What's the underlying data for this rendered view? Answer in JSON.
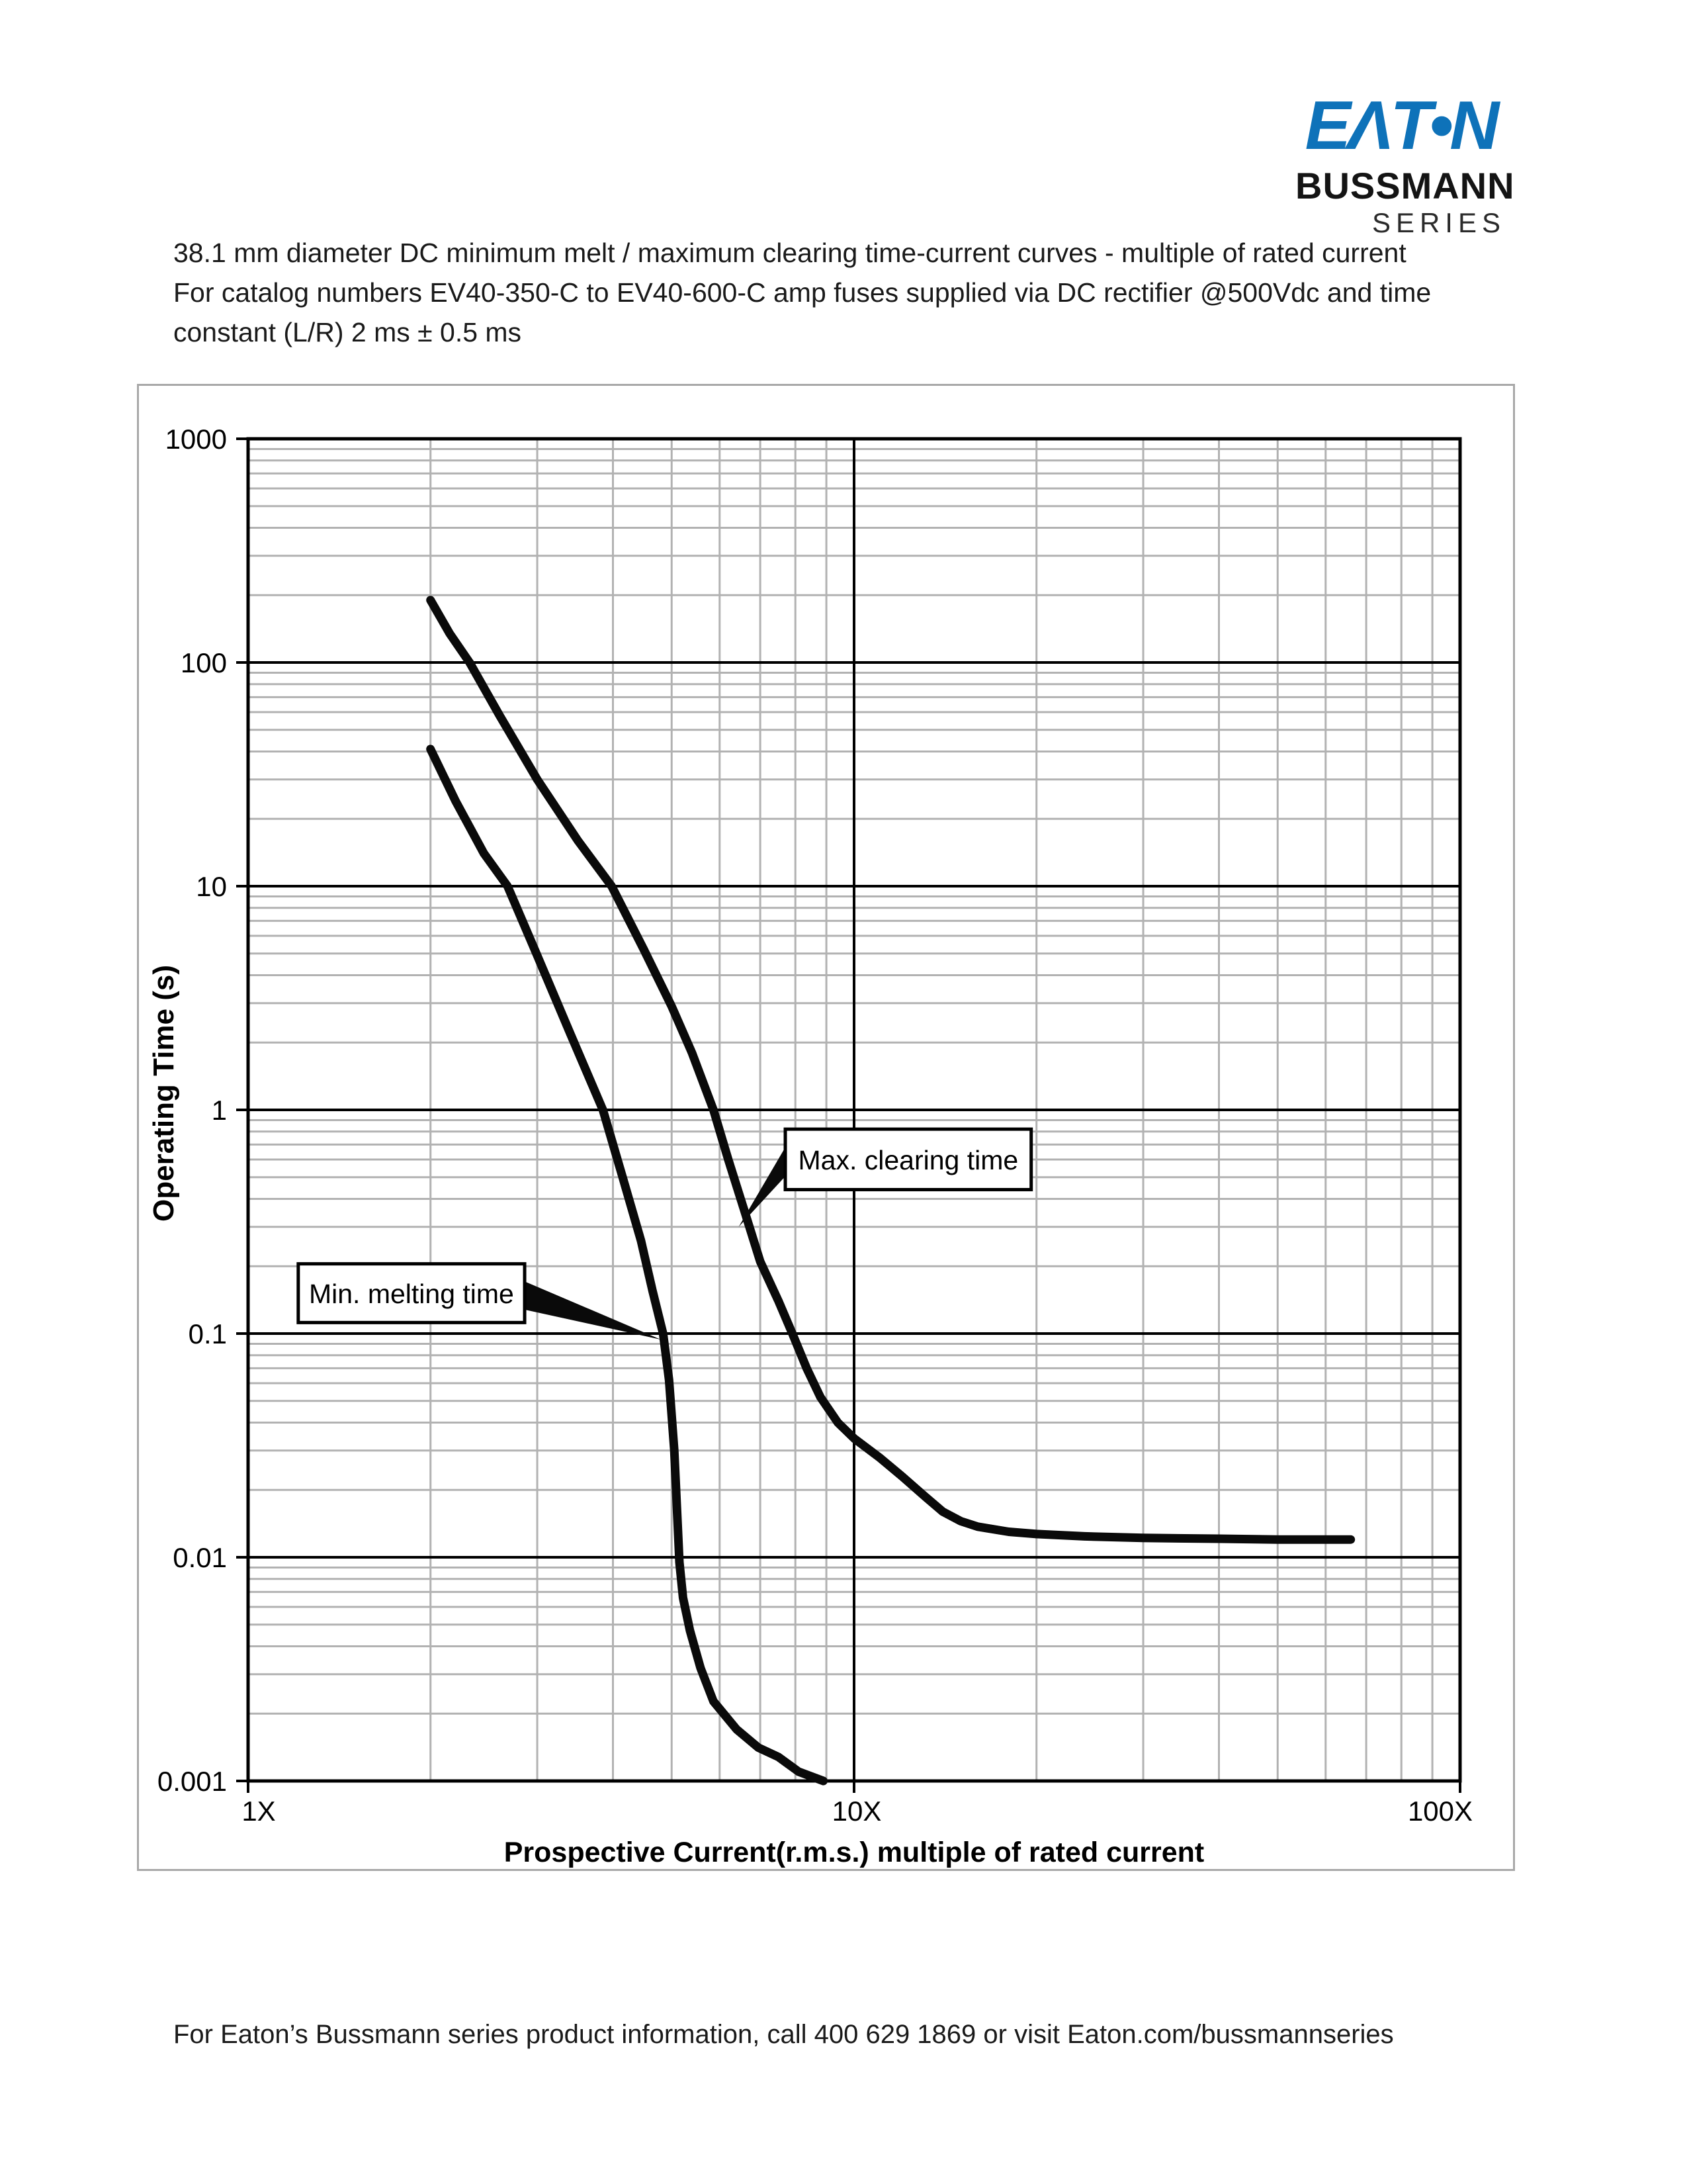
{
  "page": {
    "title_lines": [
      "38.1 mm diameter DC minimum melt / maximum clearing time-current curves - multiple of rated current",
      "For catalog numbers EV40-350-C to EV40-600-C amp fuses supplied via DC rectifier @500Vdc and time",
      "constant (L/R) 2 ms ± 0.5 ms"
    ],
    "footer": "For Eaton’s Bussmann series product information, call 400 629 1869 or visit Eaton.com/bussmannseries"
  },
  "logo": {
    "brand": "EΛT•N",
    "line1": "BUSSMANN",
    "line2": "SERIES",
    "brand_color": "#0e72b9"
  },
  "chart_data": {
    "type": "line",
    "title": "",
    "xlabel": "Prospective Current(r.m.s.) multiple of rated current",
    "ylabel": "Operating Time (s)",
    "x_scale": "log",
    "y_scale": "log",
    "xlim": [
      1,
      100
    ],
    "ylim": [
      0.001,
      1000
    ],
    "grid": {
      "minor": "on",
      "major": "on",
      "legend": "none"
    },
    "x_tick_labels": [
      {
        "v": 1,
        "label": "1X"
      },
      {
        "v": 10,
        "label": "10X"
      },
      {
        "v": 100,
        "label": "100X"
      }
    ],
    "y_tick_labels": [
      {
        "v": 1000,
        "label": "1000"
      },
      {
        "v": 100,
        "label": "100"
      },
      {
        "v": 10,
        "label": "10"
      },
      {
        "v": 1,
        "label": "1"
      },
      {
        "v": 0.1,
        "label": "0.1"
      },
      {
        "v": 0.01,
        "label": "0.01"
      },
      {
        "v": 0.001,
        "label": "0.001"
      }
    ],
    "colors": {
      "curve": "#0a0a0a",
      "grid_minor": "#b2b2b2",
      "grid_major": "#000000",
      "frame_border": "#a8a8a8"
    },
    "series": [
      {
        "name": "Min. melting time",
        "points": [
          [
            2.0,
            41
          ],
          [
            2.2,
            24
          ],
          [
            2.45,
            14
          ],
          [
            2.68,
            10
          ],
          [
            3.0,
            4.9
          ],
          [
            3.4,
            2.2
          ],
          [
            3.85,
            1.0
          ],
          [
            4.15,
            0.5
          ],
          [
            4.45,
            0.26
          ],
          [
            4.65,
            0.155
          ],
          [
            4.84,
            0.1
          ],
          [
            4.95,
            0.062
          ],
          [
            5.05,
            0.03
          ],
          [
            5.11,
            0.015
          ],
          [
            5.15,
            0.0095
          ],
          [
            5.22,
            0.0066
          ],
          [
            5.36,
            0.0047
          ],
          [
            5.58,
            0.0032
          ],
          [
            5.86,
            0.00227
          ],
          [
            6.4,
            0.0017
          ],
          [
            6.95,
            0.00141
          ],
          [
            7.5,
            0.00128
          ],
          [
            8.1,
            0.0011
          ],
          [
            8.9,
            0.001
          ]
        ]
      },
      {
        "name": "Max. clearing time",
        "points": [
          [
            2.0,
            190
          ],
          [
            2.15,
            135
          ],
          [
            2.32,
            100
          ],
          [
            2.6,
            58
          ],
          [
            3.0,
            30
          ],
          [
            3.5,
            16
          ],
          [
            3.98,
            10
          ],
          [
            4.5,
            5.2
          ],
          [
            5.0,
            2.9
          ],
          [
            5.4,
            1.8
          ],
          [
            5.86,
            1.0
          ],
          [
            6.2,
            0.6
          ],
          [
            6.6,
            0.35
          ],
          [
            7.0,
            0.21
          ],
          [
            7.5,
            0.14
          ],
          [
            7.91,
            0.1
          ],
          [
            8.35,
            0.07
          ],
          [
            8.8,
            0.052
          ],
          [
            9.4,
            0.04
          ],
          [
            10.0,
            0.034
          ],
          [
            11.0,
            0.028
          ],
          [
            12.0,
            0.023
          ],
          [
            13.0,
            0.019
          ],
          [
            14.0,
            0.016
          ],
          [
            15.0,
            0.0145
          ],
          [
            16.0,
            0.0137
          ],
          [
            18.0,
            0.013
          ],
          [
            20.0,
            0.0127
          ],
          [
            24.0,
            0.0124
          ],
          [
            30.0,
            0.0122
          ],
          [
            40.0,
            0.0121
          ],
          [
            50.0,
            0.012
          ],
          [
            66.0,
            0.012
          ]
        ]
      }
    ],
    "annotations": [
      {
        "text": "Min. melting time",
        "side": "right",
        "box": {
          "x1": 1.21,
          "x2": 2.86,
          "y_top": 0.205,
          "y_bot": 0.112
        },
        "tip": [
          4.8,
          0.094
        ]
      },
      {
        "text": "Max. clearing time",
        "side": "left",
        "box": {
          "x1": 7.7,
          "x2": 19.6,
          "y_top": 0.82,
          "y_bot": 0.44
        },
        "tip": [
          6.45,
          0.3
        ]
      }
    ]
  }
}
